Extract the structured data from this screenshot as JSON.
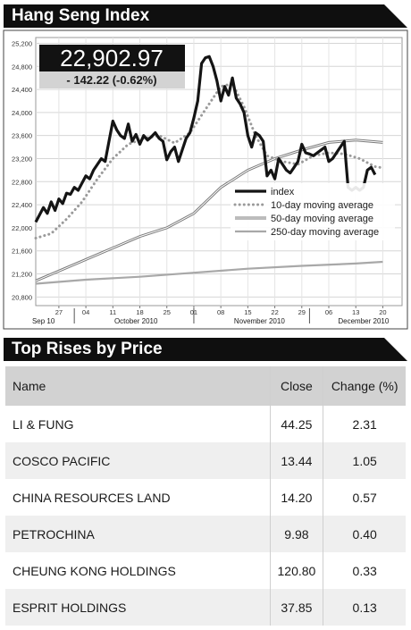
{
  "header": {
    "title": "Hang Seng Index"
  },
  "quote": {
    "value": "22,902.97",
    "change": "- 142.22 (-0.62%)"
  },
  "chart_data": {
    "type": "line",
    "ylim": [
      20650,
      25300
    ],
    "yticks": [
      20800,
      21200,
      21600,
      22000,
      22400,
      22800,
      23200,
      23600,
      24000,
      24400,
      24800,
      25200
    ],
    "ytick_labels": [
      "20,800",
      "21,200",
      "21,600",
      "22,000",
      "22,400",
      "22,800",
      "23,200",
      "23,600",
      "24,000",
      "24,400",
      "24,800",
      "25,200"
    ],
    "xticks": [
      {
        "day": 0,
        "label": "27"
      },
      {
        "day": 7,
        "label": "04"
      },
      {
        "day": 14,
        "label": "11"
      },
      {
        "day": 21,
        "label": "18"
      },
      {
        "day": 28,
        "label": "25"
      },
      {
        "day": 35,
        "label": "01"
      },
      {
        "day": 42,
        "label": "08"
      },
      {
        "day": 49,
        "label": "15"
      },
      {
        "day": 56,
        "label": "22"
      },
      {
        "day": 63,
        "label": "29"
      },
      {
        "day": 70,
        "label": "06"
      },
      {
        "day": 77,
        "label": "13"
      },
      {
        "day": 84,
        "label": "20"
      }
    ],
    "month_labels": [
      {
        "day": -4,
        "label": "Sep 10"
      },
      {
        "day": 20,
        "label": "October 2010"
      },
      {
        "day": 52,
        "label": "November 2010"
      },
      {
        "day": 79,
        "label": "December 2010"
      }
    ],
    "month_boundaries": [
      4,
      35,
      65
    ],
    "xlim": [
      -6,
      89
    ],
    "legend": {
      "position": "inside-right",
      "entries": [
        "index",
        "10-day moving average",
        "50-day moving average",
        "250-day moving average"
      ]
    },
    "series": [
      {
        "name": "index",
        "points": [
          [
            -6,
            22100
          ],
          [
            -4,
            22350
          ],
          [
            -3,
            22250
          ],
          [
            -2,
            22450
          ],
          [
            -1,
            22300
          ],
          [
            0,
            22500
          ],
          [
            1,
            22420
          ],
          [
            2,
            22600
          ],
          [
            3,
            22580
          ],
          [
            4,
            22700
          ],
          [
            5,
            22650
          ],
          [
            7,
            22900
          ],
          [
            8,
            22850
          ],
          [
            9,
            23000
          ],
          [
            10,
            23100
          ],
          [
            11,
            23200
          ],
          [
            12,
            23150
          ],
          [
            13,
            23500
          ],
          [
            14,
            23850
          ],
          [
            15,
            23700
          ],
          [
            16,
            23600
          ],
          [
            17,
            23550
          ],
          [
            18,
            23800
          ],
          [
            19,
            23500
          ],
          [
            20,
            23620
          ],
          [
            21,
            23450
          ],
          [
            22,
            23600
          ],
          [
            23,
            23520
          ],
          [
            24,
            23580
          ],
          [
            25,
            23650
          ],
          [
            26,
            23550
          ],
          [
            27,
            23500
          ],
          [
            28,
            23180
          ],
          [
            29,
            23320
          ],
          [
            30,
            23400
          ],
          [
            31,
            23150
          ],
          [
            32,
            23350
          ],
          [
            33,
            23550
          ],
          [
            34,
            23650
          ],
          [
            35,
            23900
          ],
          [
            36,
            24200
          ],
          [
            37,
            24850
          ],
          [
            38,
            24950
          ],
          [
            39,
            24970
          ],
          [
            40,
            24800
          ],
          [
            41,
            24550
          ],
          [
            42,
            24200
          ],
          [
            43,
            24450
          ],
          [
            44,
            24300
          ],
          [
            45,
            24600
          ],
          [
            46,
            24250
          ],
          [
            47,
            24150
          ],
          [
            48,
            24000
          ],
          [
            49,
            23600
          ],
          [
            50,
            23400
          ],
          [
            51,
            23650
          ],
          [
            52,
            23600
          ],
          [
            53,
            23500
          ],
          [
            54,
            22900
          ],
          [
            55,
            23000
          ],
          [
            56,
            22850
          ],
          [
            57,
            23200
          ],
          [
            58,
            23100
          ],
          [
            59,
            23000
          ],
          [
            60,
            22950
          ],
          [
            61,
            23050
          ],
          [
            62,
            23150
          ],
          [
            63,
            23450
          ],
          [
            64,
            23300
          ],
          [
            65,
            23280
          ],
          [
            66,
            23250
          ],
          [
            67,
            23300
          ],
          [
            68,
            23350
          ],
          [
            69,
            23400
          ],
          [
            70,
            23150
          ],
          [
            71,
            23200
          ],
          [
            72,
            23300
          ],
          [
            73,
            23400
          ],
          [
            74,
            23500
          ],
          [
            75,
            22700
          ],
          [
            76,
            22650
          ],
          [
            77,
            22700
          ],
          [
            78,
            22650
          ],
          [
            79,
            22700
          ],
          [
            80,
            23000
          ],
          [
            81,
            23050
          ],
          [
            82,
            22920
          ]
        ]
      },
      {
        "name": "10-day moving average",
        "points": [
          [
            -6,
            21820
          ],
          [
            -2,
            21900
          ],
          [
            2,
            22150
          ],
          [
            6,
            22450
          ],
          [
            10,
            22850
          ],
          [
            14,
            23200
          ],
          [
            18,
            23450
          ],
          [
            22,
            23550
          ],
          [
            26,
            23600
          ],
          [
            30,
            23470
          ],
          [
            34,
            23650
          ],
          [
            38,
            24050
          ],
          [
            42,
            24450
          ],
          [
            45,
            24500
          ],
          [
            48,
            24100
          ],
          [
            51,
            23600
          ],
          [
            54,
            23250
          ],
          [
            58,
            23150
          ],
          [
            62,
            23100
          ],
          [
            66,
            23250
          ],
          [
            70,
            23300
          ],
          [
            74,
            23280
          ],
          [
            78,
            23200
          ],
          [
            82,
            23060
          ],
          [
            84,
            23040
          ]
        ]
      },
      {
        "name": "50-day moving average",
        "points": [
          [
            -6,
            21080
          ],
          [
            0,
            21250
          ],
          [
            7,
            21450
          ],
          [
            14,
            21650
          ],
          [
            21,
            21850
          ],
          [
            28,
            22000
          ],
          [
            35,
            22250
          ],
          [
            42,
            22700
          ],
          [
            49,
            23000
          ],
          [
            56,
            23200
          ],
          [
            63,
            23350
          ],
          [
            70,
            23480
          ],
          [
            77,
            23520
          ],
          [
            84,
            23480
          ]
        ]
      },
      {
        "name": "250-day moving average",
        "points": [
          [
            -6,
            21030
          ],
          [
            7,
            21100
          ],
          [
            21,
            21150
          ],
          [
            35,
            21220
          ],
          [
            49,
            21290
          ],
          [
            63,
            21340
          ],
          [
            77,
            21380
          ],
          [
            84,
            21410
          ]
        ]
      }
    ]
  },
  "rises": {
    "title": "Top Rises by Price",
    "headers": {
      "name": "Name",
      "close": "Close",
      "change": "Change (%)"
    },
    "rows": [
      {
        "name": "LI & FUNG",
        "close": "44.25",
        "change": "2.31"
      },
      {
        "name": "COSCO PACIFIC",
        "close": "13.44",
        "change": "1.05"
      },
      {
        "name": "CHINA RESOURCES LAND",
        "close": "14.20",
        "change": "0.57"
      },
      {
        "name": "PETROCHINA",
        "close": "9.98",
        "change": "0.40"
      },
      {
        "name": "CHEUNG KONG HOLDINGS",
        "close": "120.80",
        "change": "0.33"
      },
      {
        "name": "ESPRIT HOLDINGS",
        "close": "37.85",
        "change": "0.13"
      }
    ]
  }
}
